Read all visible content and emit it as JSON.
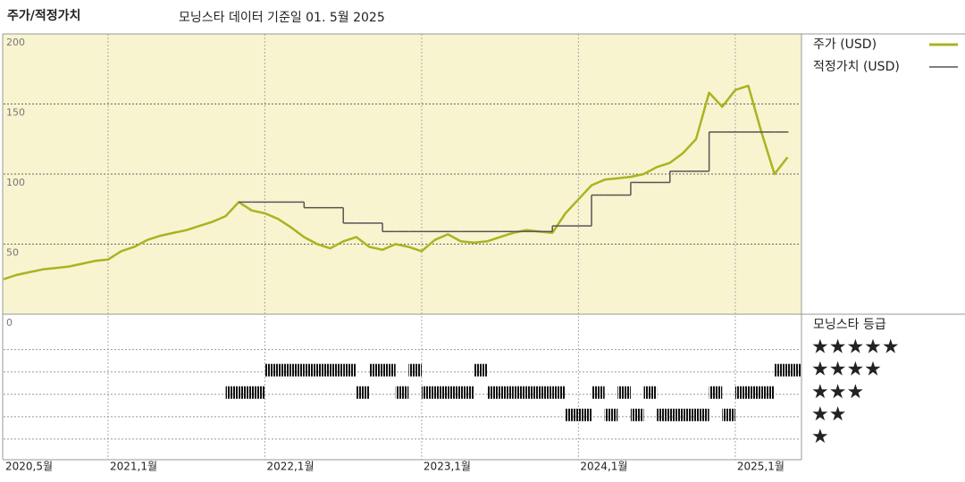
{
  "chart_data": {
    "type": "line",
    "title": "주가/적정가치",
    "subtitle": "모닝스타 데이터 기준일 01. 5월 2025",
    "x": [
      "2020-05",
      "2020-06",
      "2020-07",
      "2020-08",
      "2020-09",
      "2020-10",
      "2020-11",
      "2020-12",
      "2021-01",
      "2021-02",
      "2021-03",
      "2021-04",
      "2021-05",
      "2021-06",
      "2021-07",
      "2021-08",
      "2021-09",
      "2021-10",
      "2021-11",
      "2021-12",
      "2022-01",
      "2022-02",
      "2022-03",
      "2022-04",
      "2022-05",
      "2022-06",
      "2022-07",
      "2022-08",
      "2022-09",
      "2022-10",
      "2022-11",
      "2022-12",
      "2023-01",
      "2023-02",
      "2023-03",
      "2023-04",
      "2023-05",
      "2023-06",
      "2023-07",
      "2023-08",
      "2023-09",
      "2023-10",
      "2023-11",
      "2023-12",
      "2024-01",
      "2024-02",
      "2024-03",
      "2024-04",
      "2024-05",
      "2024-06",
      "2024-07",
      "2024-08",
      "2024-09",
      "2024-10",
      "2024-11",
      "2024-12",
      "2025-01",
      "2025-02",
      "2025-03",
      "2025-04",
      "2025-05"
    ],
    "xlim": [
      "2020-05",
      "2025-06"
    ],
    "xticks": [
      {
        "value": "2020-05",
        "label": "2020,5월"
      },
      {
        "value": "2021-01",
        "label": "2021,1월"
      },
      {
        "value": "2022-01",
        "label": "2022,1월"
      },
      {
        "value": "2023-01",
        "label": "2023,1월"
      },
      {
        "value": "2024-01",
        "label": "2024,1월"
      },
      {
        "value": "2025-01",
        "label": "2025,1월"
      }
    ],
    "ylim": [
      0,
      200
    ],
    "yticks": [
      0,
      50,
      100,
      150,
      200
    ],
    "grid": true,
    "legend_position": "right",
    "series": [
      {
        "name": "주가 (USD)",
        "color": "#a9b421",
        "step": false,
        "values": [
          25,
          28,
          30,
          32,
          33,
          34,
          36,
          38,
          39,
          45,
          48,
          53,
          56,
          58,
          60,
          63,
          66,
          70,
          80,
          74,
          72,
          68,
          62,
          55,
          50,
          47,
          52,
          55,
          48,
          46,
          50,
          48,
          45,
          53,
          57,
          52,
          51,
          52,
          55,
          58,
          60,
          59,
          58,
          72,
          82,
          92,
          96,
          97,
          98,
          100,
          105,
          108,
          115,
          125,
          158,
          148,
          160,
          163,
          130,
          100,
          112
        ]
      },
      {
        "name": "적정가치 (USD)",
        "color": "#555555",
        "step": true,
        "values": [
          null,
          null,
          null,
          null,
          null,
          null,
          null,
          null,
          null,
          null,
          null,
          null,
          null,
          null,
          null,
          null,
          null,
          null,
          80,
          80,
          80,
          80,
          80,
          76,
          76,
          76,
          65,
          65,
          65,
          59,
          59,
          59,
          59,
          59,
          59,
          59,
          59,
          59,
          59,
          59,
          59,
          59,
          63,
          63,
          63,
          85,
          85,
          85,
          94,
          94,
          94,
          102,
          102,
          102,
          130,
          130,
          130,
          130,
          130,
          130,
          130
        ]
      }
    ],
    "rating": {
      "title": "모닝스타 등급",
      "ylim": [
        0,
        6.5
      ],
      "yticks": [
        {
          "value": 5,
          "label": "★★★★★"
        },
        {
          "value": 4,
          "label": "★★★★"
        },
        {
          "value": 3,
          "label": "★★★"
        },
        {
          "value": 2,
          "label": "★★"
        },
        {
          "value": 1,
          "label": "★"
        }
      ],
      "values": [
        null,
        null,
        null,
        null,
        null,
        null,
        null,
        null,
        null,
        null,
        null,
        null,
        null,
        null,
        null,
        null,
        null,
        3,
        3,
        3,
        4,
        4,
        4,
        4,
        4,
        4,
        4,
        3,
        4,
        4,
        3,
        4,
        3,
        3,
        3,
        3,
        4,
        3,
        3,
        3,
        3,
        3,
        3,
        2,
        2,
        3,
        2,
        3,
        2,
        3,
        2,
        2,
        2,
        2,
        3,
        2,
        3,
        3,
        3,
        4,
        4
      ]
    }
  }
}
